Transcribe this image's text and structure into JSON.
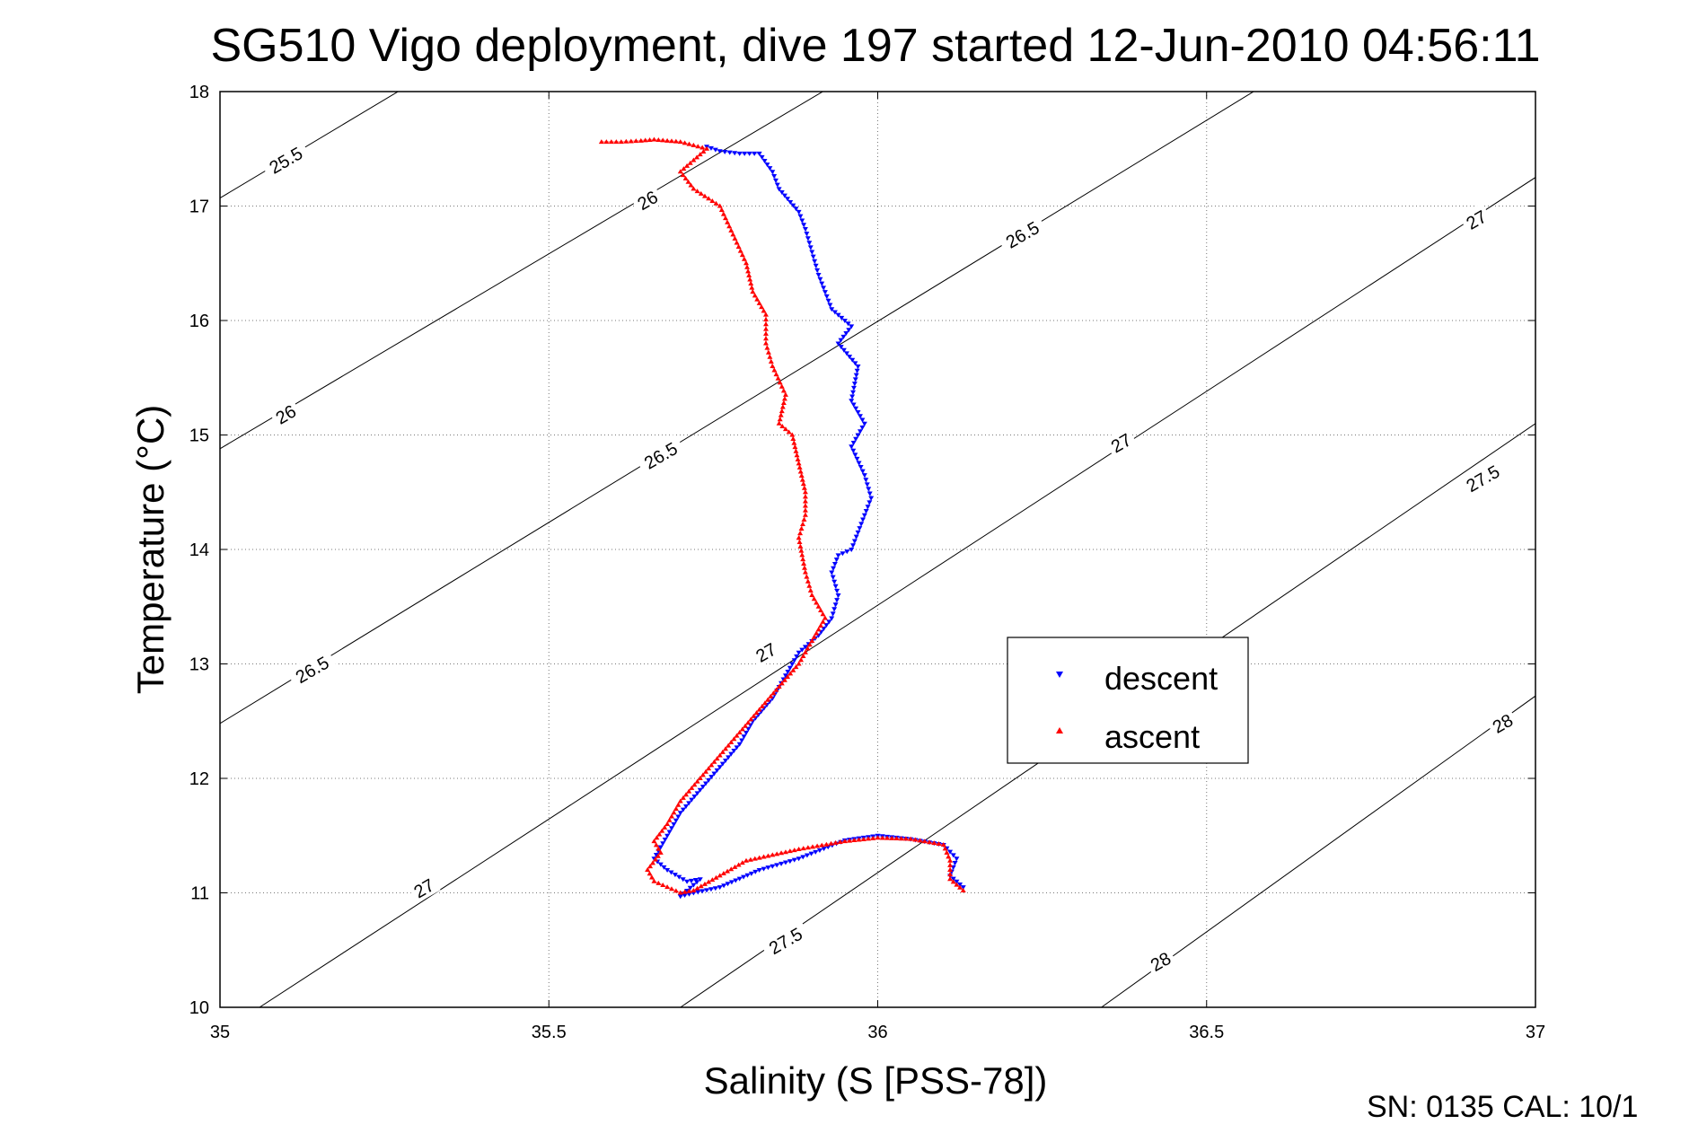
{
  "chart_data": {
    "type": "scatter",
    "title": "SG510 Vigo deployment, dive 197 started 12-Jun-2010 04:56:11",
    "xlabel": "Salinity (S [PSS-78])",
    "ylabel": "Temperature (°C)",
    "xlim": [
      35,
      37
    ],
    "ylim": [
      10,
      18
    ],
    "x_ticks": [
      "35",
      "35.5",
      "36",
      "36.5",
      "37"
    ],
    "y_ticks": [
      "10",
      "11",
      "12",
      "13",
      "14",
      "15",
      "16",
      "17",
      "18"
    ],
    "grid": true,
    "legend_position": "center-right",
    "footer": "SN: 0135  CAL: 10/1",
    "density_contours": [
      {
        "sigma": 25.5,
        "label": "25.5",
        "points": [
          [
            35.0,
            17.07
          ],
          [
            35.3,
            18.1
          ]
        ]
      },
      {
        "sigma": 26,
        "label": "26",
        "points": [
          [
            35.0,
            14.88
          ],
          [
            35.946,
            18.1
          ]
        ]
      },
      {
        "sigma": 26.5,
        "label": "26.5",
        "points": [
          [
            35.0,
            12.48
          ],
          [
            36.6,
            18.1
          ]
        ]
      },
      {
        "sigma": 27,
        "label": "27",
        "points": [
          [
            35.06,
            10.0
          ],
          [
            37.0,
            17.25
          ]
        ]
      },
      {
        "sigma": 27.5,
        "label": "27.5",
        "points": [
          [
            35.7,
            10.0
          ],
          [
            37.0,
            15.1
          ]
        ]
      },
      {
        "sigma": 28,
        "label": "28",
        "points": [
          [
            36.34,
            10.0
          ],
          [
            37.0,
            12.72
          ]
        ]
      }
    ],
    "contour_labels": [
      {
        "text": "25.5",
        "x": 35.1,
        "y": 17.4
      },
      {
        "text": "26",
        "x": 35.65,
        "y": 17.05
      },
      {
        "text": "26",
        "x": 35.1,
        "y": 15.18
      },
      {
        "text": "26.5",
        "x": 36.22,
        "y": 16.75
      },
      {
        "text": "26.5",
        "x": 35.67,
        "y": 14.82
      },
      {
        "text": "26.5",
        "x": 35.14,
        "y": 12.95
      },
      {
        "text": "27",
        "x": 36.91,
        "y": 16.88
      },
      {
        "text": "27",
        "x": 36.37,
        "y": 14.93
      },
      {
        "text": "27",
        "x": 35.83,
        "y": 13.1
      },
      {
        "text": "27",
        "x": 35.31,
        "y": 11.04
      },
      {
        "text": "27.5",
        "x": 36.92,
        "y": 14.62
      },
      {
        "text": "27.5",
        "x": 35.86,
        "y": 10.58
      },
      {
        "text": "28",
        "x": 36.95,
        "y": 12.48
      },
      {
        "text": "28",
        "x": 36.43,
        "y": 10.4
      }
    ],
    "series": [
      {
        "name": "descent",
        "color": "#0000ff",
        "marker": "triangle-down",
        "points": [
          [
            35.74,
            17.52
          ],
          [
            35.76,
            17.48
          ],
          [
            35.79,
            17.46
          ],
          [
            35.82,
            17.46
          ],
          [
            35.84,
            17.3
          ],
          [
            35.85,
            17.15
          ],
          [
            35.88,
            16.95
          ],
          [
            35.89,
            16.8
          ],
          [
            35.9,
            16.6
          ],
          [
            35.91,
            16.4
          ],
          [
            35.93,
            16.1
          ],
          [
            35.96,
            15.95
          ],
          [
            35.94,
            15.8
          ],
          [
            35.97,
            15.6
          ],
          [
            35.96,
            15.3
          ],
          [
            35.98,
            15.1
          ],
          [
            35.96,
            14.9
          ],
          [
            35.98,
            14.65
          ],
          [
            35.99,
            14.45
          ],
          [
            35.96,
            14.0
          ],
          [
            35.94,
            13.95
          ],
          [
            35.93,
            13.8
          ],
          [
            35.94,
            13.6
          ],
          [
            35.93,
            13.4
          ],
          [
            35.91,
            13.25
          ],
          [
            35.88,
            13.1
          ],
          [
            35.86,
            12.9
          ],
          [
            35.84,
            12.7
          ],
          [
            35.81,
            12.5
          ],
          [
            35.79,
            12.3
          ],
          [
            35.76,
            12.1
          ],
          [
            35.73,
            11.9
          ],
          [
            35.7,
            11.7
          ],
          [
            35.68,
            11.5
          ],
          [
            35.67,
            11.4
          ],
          [
            35.66,
            11.3
          ],
          [
            35.68,
            11.2
          ],
          [
            35.71,
            11.1
          ],
          [
            35.73,
            11.12
          ],
          [
            35.7,
            10.97
          ],
          [
            35.72,
            11.0
          ],
          [
            35.76,
            11.05
          ],
          [
            35.82,
            11.2
          ],
          [
            35.88,
            11.3
          ],
          [
            35.95,
            11.46
          ],
          [
            36.0,
            11.5
          ],
          [
            36.05,
            11.47
          ],
          [
            36.1,
            11.42
          ],
          [
            36.12,
            11.3
          ],
          [
            36.11,
            11.15
          ],
          [
            36.13,
            11.05
          ]
        ]
      },
      {
        "name": "ascent",
        "color": "#ff0000",
        "marker": "triangle-up",
        "points": [
          [
            36.13,
            11.02
          ],
          [
            36.11,
            11.12
          ],
          [
            36.11,
            11.28
          ],
          [
            36.1,
            11.42
          ],
          [
            36.05,
            11.47
          ],
          [
            36.0,
            11.48
          ],
          [
            35.95,
            11.45
          ],
          [
            35.88,
            11.38
          ],
          [
            35.8,
            11.28
          ],
          [
            35.76,
            11.15
          ],
          [
            35.72,
            11.02
          ],
          [
            35.7,
            11.0
          ],
          [
            35.66,
            11.1
          ],
          [
            35.65,
            11.2
          ],
          [
            35.67,
            11.35
          ],
          [
            35.66,
            11.45
          ],
          [
            35.68,
            11.6
          ],
          [
            35.7,
            11.8
          ],
          [
            35.73,
            12.0
          ],
          [
            35.76,
            12.2
          ],
          [
            35.79,
            12.4
          ],
          [
            35.82,
            12.6
          ],
          [
            35.85,
            12.8
          ],
          [
            35.88,
            13.0
          ],
          [
            35.9,
            13.2
          ],
          [
            35.92,
            13.4
          ],
          [
            35.9,
            13.6
          ],
          [
            35.89,
            13.8
          ],
          [
            35.88,
            14.1
          ],
          [
            35.89,
            14.3
          ],
          [
            35.89,
            14.5
          ],
          [
            35.88,
            14.75
          ],
          [
            35.87,
            15.0
          ],
          [
            35.85,
            15.1
          ],
          [
            35.86,
            15.35
          ],
          [
            35.84,
            15.6
          ],
          [
            35.83,
            15.8
          ],
          [
            35.83,
            16.05
          ],
          [
            35.81,
            16.25
          ],
          [
            35.8,
            16.5
          ],
          [
            35.78,
            16.75
          ],
          [
            35.76,
            17.0
          ],
          [
            35.72,
            17.15
          ],
          [
            35.7,
            17.3
          ],
          [
            35.74,
            17.5
          ],
          [
            35.7,
            17.56
          ],
          [
            35.66,
            17.58
          ],
          [
            35.64,
            17.57
          ],
          [
            35.61,
            17.56
          ],
          [
            35.58,
            17.56
          ]
        ]
      }
    ]
  }
}
